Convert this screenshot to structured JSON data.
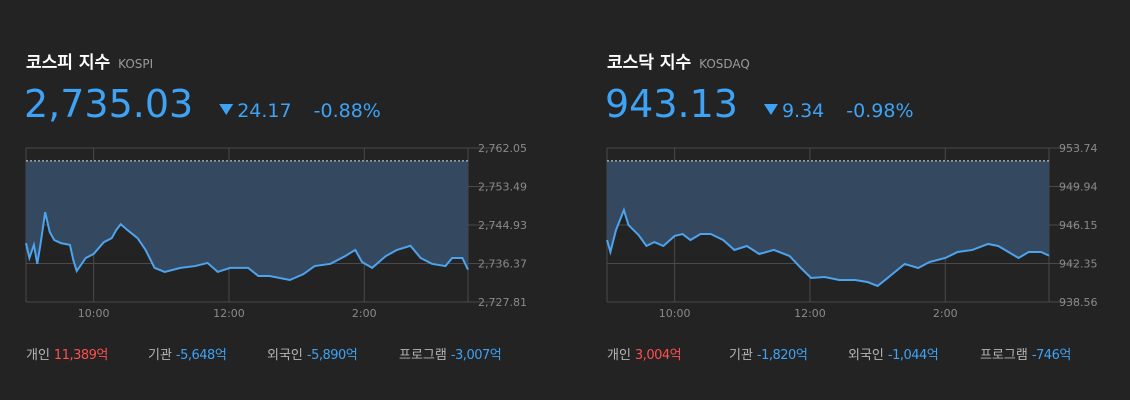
{
  "chart_data": [
    {
      "type": "line",
      "title": "코스피 지수",
      "subtitle": "KOSPI",
      "index_value": "2,735.03",
      "change": "24.17",
      "change_pct": "-0.88%",
      "reference_line": 2759.2,
      "x": [
        0,
        3,
        7,
        10,
        13,
        17,
        21,
        25,
        31,
        39,
        42,
        45,
        53,
        60,
        69,
        76,
        80,
        84,
        90,
        99,
        106,
        114,
        123,
        137,
        150,
        161,
        170,
        181,
        197,
        206,
        216,
        234,
        246,
        256,
        270,
        283,
        292,
        298,
        307,
        319,
        329,
        341,
        350,
        360,
        372,
        378,
        387,
        392
      ],
      "series": [
        {
          "name": "KOSPI",
          "color": "#4da3ee",
          "values": [
            2740.9,
            2737.6,
            2740.5,
            2736.3,
            2740.9,
            2747.8,
            2743.4,
            2741.6,
            2740.9,
            2740.5,
            2737.1,
            2734.7,
            2737.6,
            2738.5,
            2741.1,
            2742.0,
            2743.8,
            2745.1,
            2743.8,
            2742.0,
            2739.4,
            2735.4,
            2734.5,
            2735.4,
            2735.8,
            2736.5,
            2734.5,
            2735.4,
            2735.4,
            2733.6,
            2733.6,
            2732.7,
            2734.0,
            2735.8,
            2736.3,
            2738.0,
            2739.4,
            2736.7,
            2735.4,
            2738.0,
            2739.4,
            2740.3,
            2737.6,
            2736.3,
            2735.8,
            2737.6,
            2737.6,
            2735.03
          ]
        }
      ],
      "xlim": [
        0,
        392
      ],
      "xticks": [
        {
          "value": 60,
          "label": "10:00"
        },
        {
          "value": 180,
          "label": "12:00"
        },
        {
          "value": 300,
          "label": "2:00"
        }
      ],
      "ylim": [
        2727.81,
        2762.05
      ],
      "yticks": [
        {
          "value": 2762.05,
          "label": "2,762.05"
        },
        {
          "value": 2753.49,
          "label": "2,753.49"
        },
        {
          "value": 2744.93,
          "label": "2,744.93"
        },
        {
          "value": 2736.37,
          "label": "2,736.37"
        },
        {
          "value": 2727.81,
          "label": "2,727.81"
        }
      ],
      "investors": [
        {
          "label": "개인",
          "value": "11,389억",
          "color": "#ff4f4f"
        },
        {
          "label": "기관",
          "value": "-5,648억",
          "color": "#3ea2f5"
        },
        {
          "label": "외국인",
          "value": "-5,890억",
          "color": "#3ea2f5"
        },
        {
          "label": "프로그램",
          "value": "-3,007억",
          "color": "#3ea2f5"
        }
      ]
    },
    {
      "type": "line",
      "title": "코스닥 지수",
      "subtitle": "KOSDAQ",
      "index_value": "943.13",
      "change": "9.34",
      "change_pct": "-0.98%",
      "reference_line": 952.47,
      "x": [
        0,
        3,
        8,
        15,
        19,
        28,
        35,
        42,
        50,
        60,
        67,
        74,
        83,
        92,
        103,
        113,
        124,
        135,
        148,
        162,
        172,
        181,
        193,
        206,
        220,
        231,
        240,
        251,
        264,
        276,
        286,
        300,
        311,
        324,
        338,
        347,
        356,
        365,
        374,
        385,
        392
      ],
      "series": [
        {
          "name": "KOSDAQ",
          "color": "#4da3ee",
          "values": [
            944.67,
            943.49,
            945.66,
            947.63,
            946.15,
            945.16,
            944.08,
            944.47,
            944.08,
            945.07,
            945.26,
            944.67,
            945.26,
            945.26,
            944.67,
            943.69,
            944.08,
            943.29,
            943.69,
            943.09,
            941.91,
            940.93,
            941.02,
            940.73,
            940.73,
            940.53,
            940.14,
            941.12,
            942.31,
            941.91,
            942.5,
            942.9,
            943.49,
            943.69,
            944.28,
            944.08,
            943.49,
            942.9,
            943.49,
            943.49,
            943.13
          ]
        }
      ],
      "xlim": [
        0,
        392
      ],
      "xticks": [
        {
          "value": 60,
          "label": "10:00"
        },
        {
          "value": 180,
          "label": "12:00"
        },
        {
          "value": 300,
          "label": "2:00"
        }
      ],
      "ylim": [
        938.56,
        953.74
      ],
      "yticks": [
        953.74,
        949.94,
        946.15,
        942.35,
        938.56
      ],
      "investors": [
        {
          "label": "개인",
          "value": "3,004억",
          "color": "#ff4f4f"
        },
        {
          "label": "기관",
          "value": "-1,820억",
          "color": "#3ea2f5"
        },
        {
          "label": "외국인",
          "value": "-1,044억",
          "color": "#3ea2f5"
        },
        {
          "label": "프로그램",
          "value": "-746억",
          "color": "#3ea2f5"
        }
      ]
    }
  ]
}
